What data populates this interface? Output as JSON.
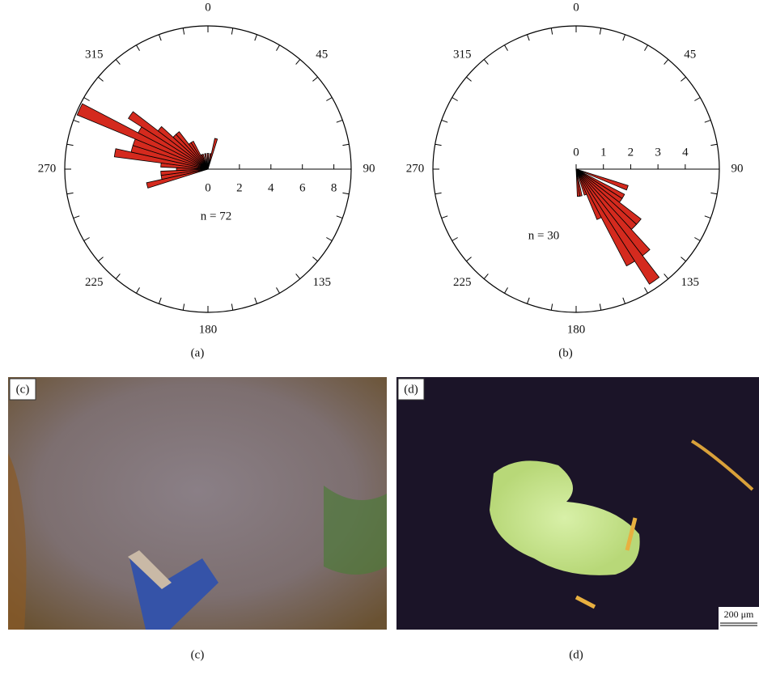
{
  "chart_data": [
    {
      "type": "rose",
      "caption": "(a)",
      "annotation": "n = 72",
      "color": "#d42a1e",
      "bin_width": 5,
      "x": [
        255,
        260,
        265,
        270,
        275,
        280,
        285,
        290,
        295,
        300,
        305,
        310,
        315,
        320,
        325,
        330,
        335,
        340,
        350,
        0,
        10,
        15
      ],
      "values": [
        4,
        3,
        3,
        2,
        3,
        6,
        5,
        5,
        9,
        5,
        6,
        4,
        3,
        3,
        2,
        2,
        1,
        1,
        1,
        1,
        1,
        2
      ],
      "rlim": [
        0,
        9.1
      ],
      "rticks": [
        0,
        2,
        4,
        6,
        8
      ],
      "angle_ticks": [
        0,
        45,
        90,
        135,
        180,
        225,
        270,
        315
      ]
    },
    {
      "type": "rose",
      "caption": "(b)",
      "annotation": "n = 30",
      "color": "#d42a1e",
      "bin_width": 5,
      "x": [
        110,
        120,
        125,
        130,
        135,
        140,
        145,
        150,
        155,
        160,
        170,
        175
      ],
      "values": [
        2,
        2,
        2,
        3,
        3,
        4,
        5,
        4,
        2,
        1,
        1,
        1
      ],
      "rlim": [
        0,
        5.25
      ],
      "rticks": [
        0,
        1,
        2,
        3,
        4
      ],
      "angle_ticks": [
        0,
        45,
        90,
        135,
        180,
        225,
        270,
        315
      ]
    }
  ],
  "photos": [
    {
      "label": "(c)",
      "caption": "(c)"
    },
    {
      "label": "(d)",
      "caption": "(d)",
      "scale_bar": "200 μm"
    }
  ]
}
